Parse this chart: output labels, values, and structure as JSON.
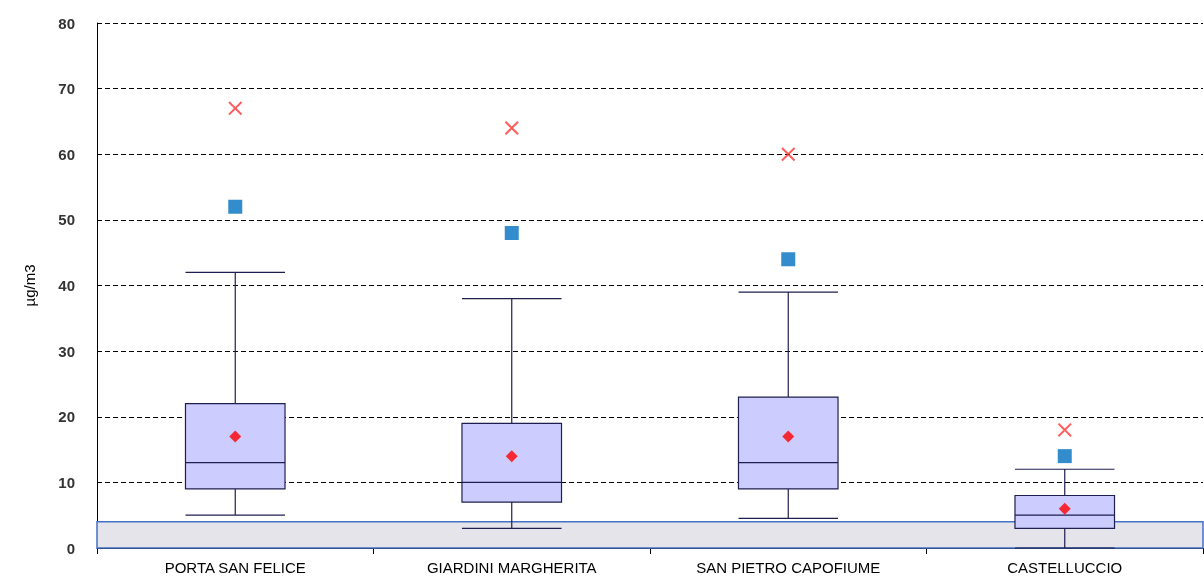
{
  "chart_data": {
    "type": "box",
    "ylabel": "µg/m3",
    "categories": [
      "PORTA SAN FELICE",
      "GIARDINI MARGHERITA",
      "SAN PIETRO CAPOFIUME",
      "CASTELLUCCIO"
    ],
    "boxes": [
      {
        "low": 5,
        "q1": 9,
        "median": 13,
        "q3": 22,
        "high": 42,
        "mean": 17
      },
      {
        "low": 3,
        "q1": 7,
        "median": 10,
        "q3": 19,
        "high": 38,
        "mean": 14
      },
      {
        "low": 4.5,
        "q1": 9,
        "median": 13,
        "q3": 23,
        "high": 39,
        "mean": 17
      },
      {
        "low": 0,
        "q1": 3,
        "median": 5,
        "q3": 8,
        "high": 12,
        "mean": 6
      }
    ],
    "color": "#ccccff",
    "series": [
      {
        "type": "scatter",
        "marker": "square",
        "color": "#0070c0",
        "x": [
          "PORTA SAN FELICE",
          "GIARDINI MARGHERITA",
          "SAN PIETRO CAPOFIUME",
          "CASTELLUCCIO"
        ],
        "values": [
          52,
          48,
          44,
          14
        ]
      },
      {
        "type": "scatter",
        "marker": "cross",
        "color": "#ff3333",
        "x": [
          "PORTA SAN FELICE",
          "GIARDINI MARGHERITA",
          "SAN PIETRO CAPOFIUME",
          "CASTELLUCCIO"
        ],
        "values": [
          67,
          64,
          60,
          18
        ]
      }
    ],
    "bands": [
      {
        "axis": "y",
        "from": 0,
        "to": 4,
        "color": "#4472c4"
      }
    ],
    "ylim": [
      0,
      80
    ],
    "yticks": [
      0,
      10,
      20,
      30,
      40,
      50,
      60,
      70,
      80
    ],
    "grid": "y"
  }
}
